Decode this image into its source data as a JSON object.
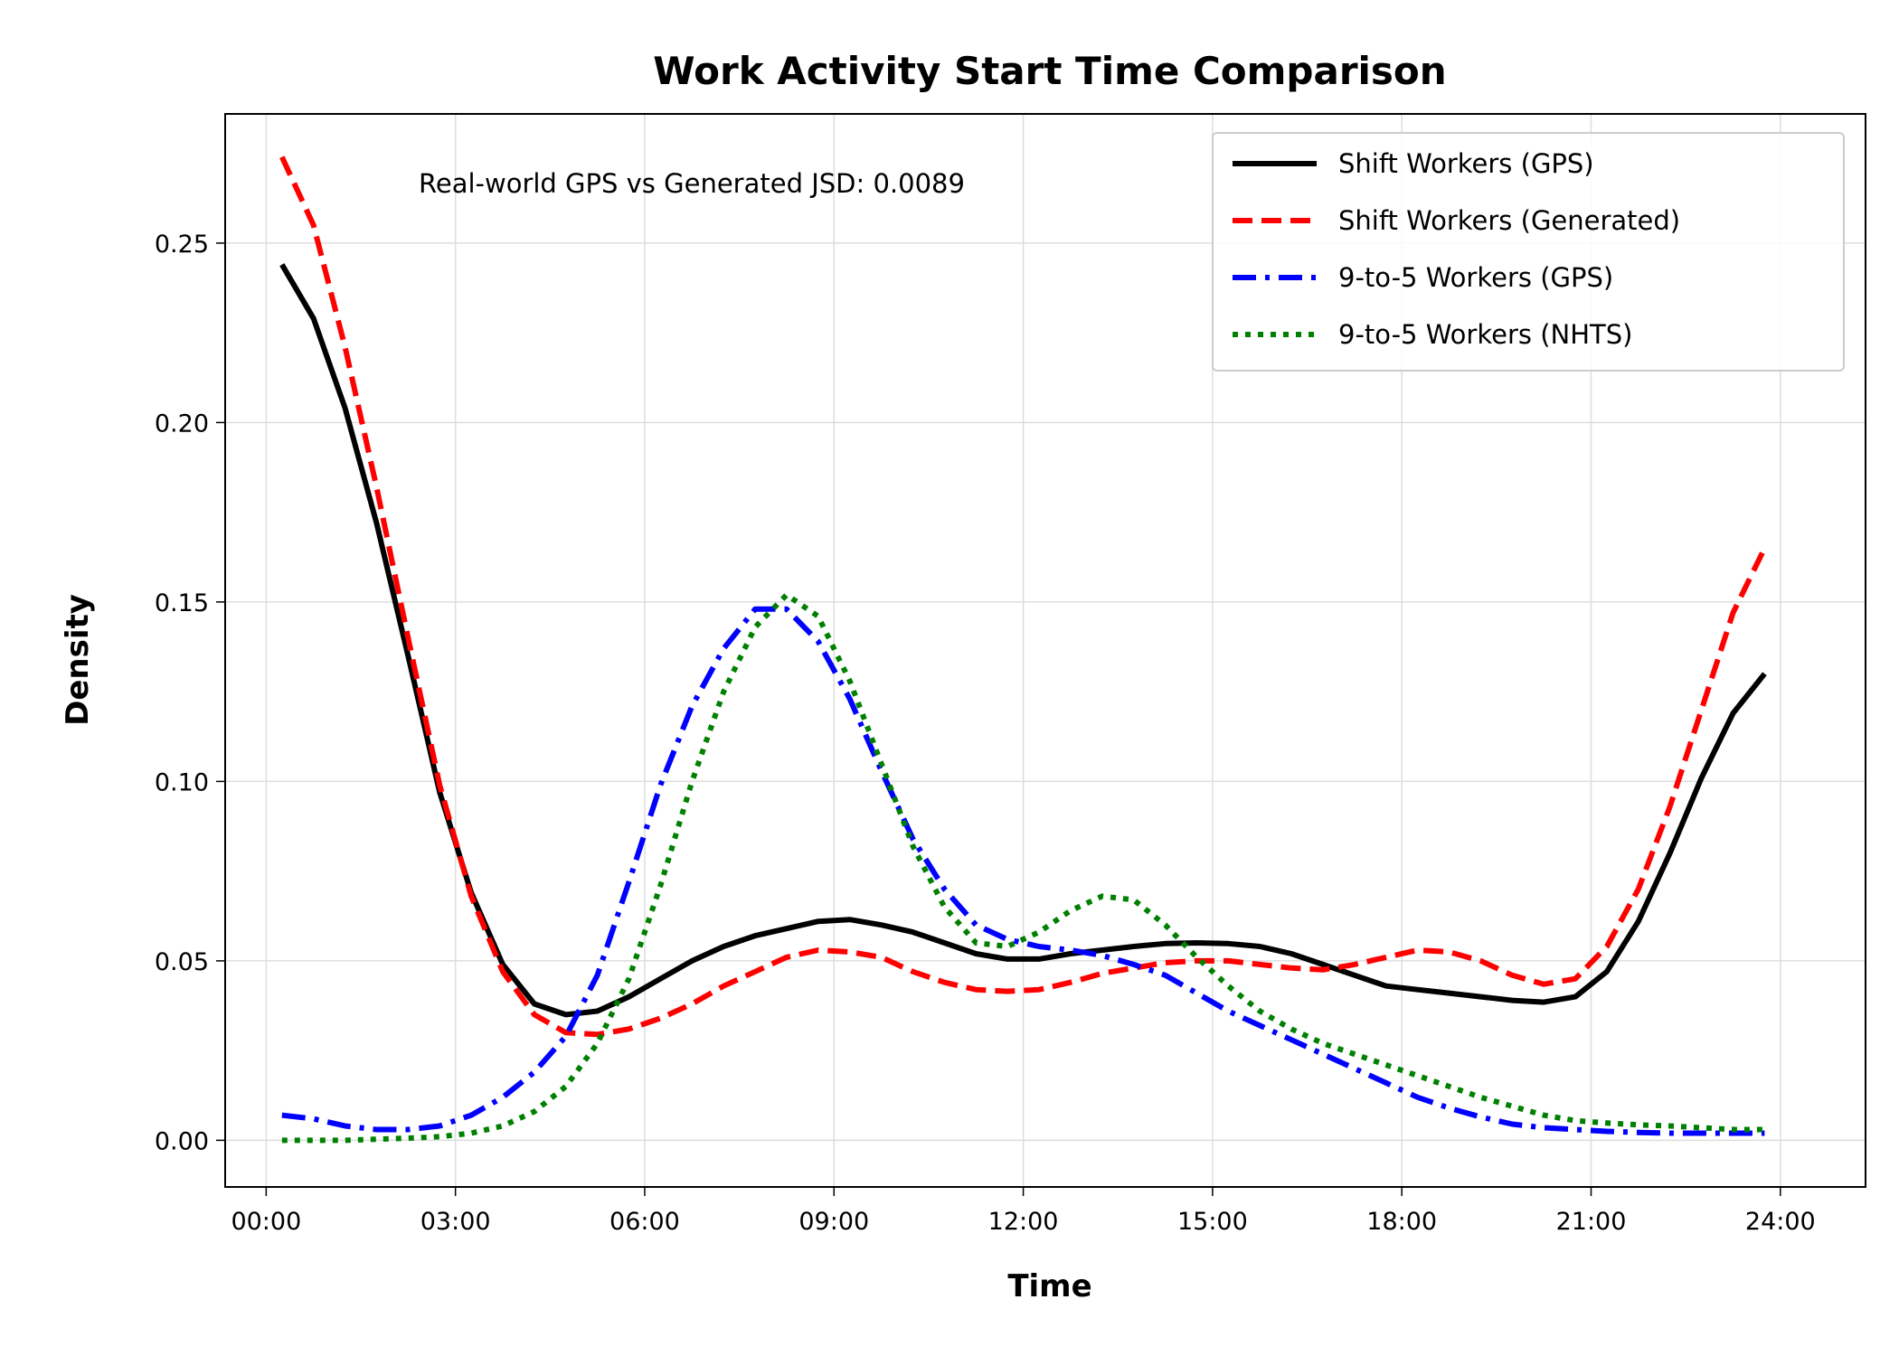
{
  "chart_data": {
    "type": "line",
    "title": "Work Activity Start Time Comparison",
    "xlabel": "Time",
    "ylabel": "Density",
    "xlim": [
      -0.65,
      25.35
    ],
    "ylim": [
      -0.013,
      0.286
    ],
    "x_ticks": [
      0,
      3,
      6,
      9,
      12,
      15,
      18,
      21,
      24
    ],
    "x_tick_labels": [
      "00:00",
      "03:00",
      "06:00",
      "09:00",
      "12:00",
      "15:00",
      "18:00",
      "21:00",
      "24:00"
    ],
    "y_ticks": [
      0.0,
      0.05,
      0.1,
      0.15,
      0.2,
      0.25
    ],
    "y_tick_labels": [
      "0.00",
      "0.05",
      "0.10",
      "0.15",
      "0.20",
      "0.25"
    ],
    "grid": true,
    "legend_position": "top-right",
    "annotation": "Real-world GPS vs Generated JSD: 0.0089",
    "x": [
      0.25,
      0.75,
      1.25,
      1.75,
      2.25,
      2.75,
      3.25,
      3.75,
      4.25,
      4.75,
      5.25,
      5.75,
      6.25,
      6.75,
      7.25,
      7.75,
      8.25,
      8.75,
      9.25,
      9.75,
      10.25,
      10.75,
      11.25,
      11.75,
      12.25,
      12.75,
      13.25,
      13.75,
      14.25,
      14.75,
      15.25,
      15.75,
      16.25,
      16.75,
      17.25,
      17.75,
      18.25,
      18.75,
      19.25,
      19.75,
      20.25,
      20.75,
      21.25,
      21.75,
      22.25,
      22.75,
      23.25,
      23.75
    ],
    "series": [
      {
        "name": "Shift Workers (GPS)",
        "color": "#000000",
        "style": "solid",
        "values": [
          0.244,
          0.229,
          0.204,
          0.172,
          0.135,
          0.097,
          0.069,
          0.049,
          0.038,
          0.035,
          0.036,
          0.04,
          0.045,
          0.05,
          0.054,
          0.057,
          0.059,
          0.061,
          0.0615,
          0.06,
          0.058,
          0.055,
          0.052,
          0.0505,
          0.0505,
          0.052,
          0.053,
          0.054,
          0.0548,
          0.055,
          0.0548,
          0.054,
          0.052,
          0.049,
          0.046,
          0.043,
          0.042,
          0.041,
          0.04,
          0.039,
          0.0385,
          0.04,
          0.047,
          0.061,
          0.08,
          0.101,
          0.119,
          0.13
        ]
      },
      {
        "name": "Shift Workers (Generated)",
        "color": "#ff0000",
        "style": "dashed",
        "values": [
          0.274,
          0.255,
          0.221,
          0.182,
          0.14,
          0.099,
          0.068,
          0.047,
          0.035,
          0.03,
          0.0295,
          0.031,
          0.034,
          0.038,
          0.043,
          0.047,
          0.051,
          0.053,
          0.0525,
          0.051,
          0.047,
          0.044,
          0.042,
          0.0415,
          0.042,
          0.044,
          0.0465,
          0.048,
          0.0495,
          0.05,
          0.05,
          0.049,
          0.048,
          0.0475,
          0.049,
          0.051,
          0.053,
          0.0525,
          0.05,
          0.046,
          0.0435,
          0.045,
          0.054,
          0.07,
          0.093,
          0.12,
          0.147,
          0.165
        ]
      },
      {
        "name": "9-to-5 Workers (GPS)",
        "color": "#0000ff",
        "style": "dashdot",
        "values": [
          0.007,
          0.006,
          0.004,
          0.003,
          0.003,
          0.004,
          0.007,
          0.012,
          0.019,
          0.029,
          0.046,
          0.072,
          0.099,
          0.121,
          0.137,
          0.148,
          0.148,
          0.139,
          0.123,
          0.103,
          0.084,
          0.07,
          0.06,
          0.056,
          0.054,
          0.053,
          0.0515,
          0.049,
          0.046,
          0.041,
          0.036,
          0.032,
          0.028,
          0.024,
          0.02,
          0.016,
          0.012,
          0.009,
          0.0065,
          0.0045,
          0.0035,
          0.003,
          0.0025,
          0.0022,
          0.002,
          0.002,
          0.002,
          0.002
        ]
      },
      {
        "name": "9-to-5 Workers (NHTS)",
        "color": "#008000",
        "style": "dotted",
        "values": [
          0.0,
          0.0,
          0.0,
          0.0003,
          0.0006,
          0.001,
          0.002,
          0.004,
          0.008,
          0.015,
          0.027,
          0.045,
          0.071,
          0.1,
          0.125,
          0.143,
          0.152,
          0.146,
          0.128,
          0.105,
          0.082,
          0.065,
          0.055,
          0.054,
          0.058,
          0.064,
          0.068,
          0.067,
          0.06,
          0.051,
          0.043,
          0.036,
          0.031,
          0.027,
          0.024,
          0.021,
          0.018,
          0.015,
          0.012,
          0.0095,
          0.007,
          0.0055,
          0.0048,
          0.0043,
          0.004,
          0.0035,
          0.003,
          0.003
        ]
      }
    ]
  }
}
